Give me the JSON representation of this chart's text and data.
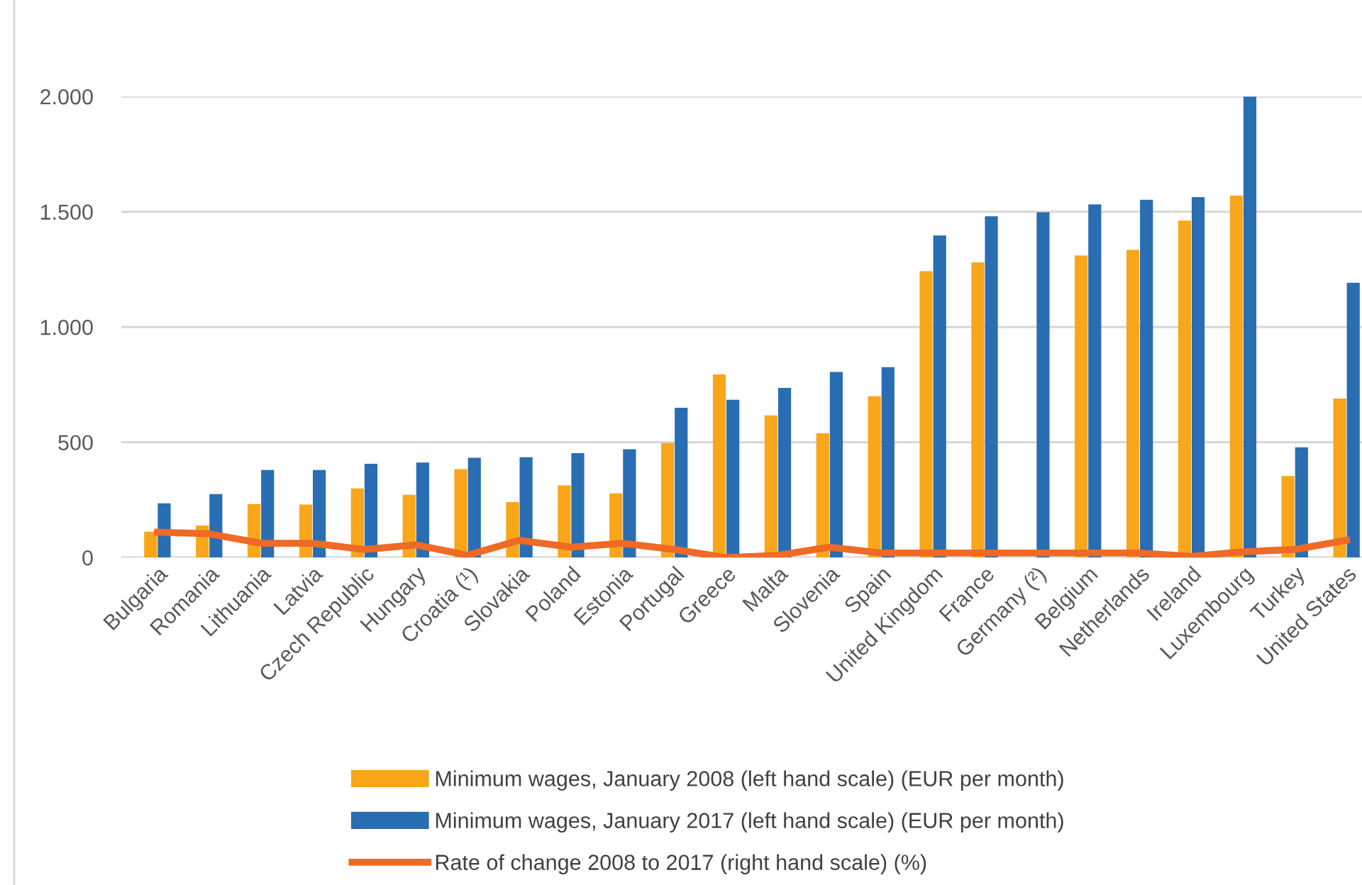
{
  "chart_data": {
    "type": "bar",
    "categories": [
      "Bulgaria",
      "Romania",
      "Lithuania",
      "Latvia",
      "Czech Republic",
      "Hungary",
      "Croatia (¹)",
      "Slovakia",
      "Poland",
      "Estonia",
      "Portugal",
      "Greece",
      "Malta",
      "Slovenia",
      "Spain",
      "United Kingdom",
      "France",
      "Germany (²)",
      "Belgium",
      "Netherlands",
      "Ireland",
      "Luxembourg",
      "Turkey",
      "United States"
    ],
    "series": [
      {
        "name": "Minimum wages, January 2008 (left hand scale) (EUR per month)",
        "color": "#f9a61b",
        "values": [
          112,
          139,
          232,
          230,
          300,
          272,
          384,
          241,
          313,
          278,
          497,
          794,
          617,
          539,
          700,
          1242,
          1280,
          null,
          1310,
          1335,
          1462,
          1570,
          354,
          690
        ]
      },
      {
        "name": "Minimum wages, January 2017 (left hand scale) (EUR per month)",
        "color": "#296db3",
        "values": [
          235,
          275,
          380,
          380,
          407,
          412,
          433,
          435,
          453,
          470,
          650,
          684,
          736,
          805,
          826,
          1397,
          1480,
          1498,
          1532,
          1552,
          1563,
          1999,
          478,
          1192
        ]
      },
      {
        "name": "Rate of change 2008 to 2017 (right hand scale) (%)",
        "color": "#ee6a25",
        "type": "line",
        "values": [
          110,
          103,
          62,
          62,
          35,
          55,
          10,
          75,
          45,
          62,
          35,
          0,
          10,
          45,
          20,
          20,
          20,
          20,
          20,
          20,
          5,
          25,
          35,
          75
        ]
      }
    ],
    "ylim": [
      0,
      2000
    ],
    "yticks": [
      {
        "value": 0,
        "label": "0"
      },
      {
        "value": 500,
        "label": "500"
      },
      {
        "value": 1000,
        "label": "1.000"
      },
      {
        "value": 1500,
        "label": "1.500"
      },
      {
        "value": 2000,
        "label": "2.000"
      }
    ],
    "grid": "y",
    "legend": "bottom",
    "marker": "none",
    "line_style": "solid"
  }
}
